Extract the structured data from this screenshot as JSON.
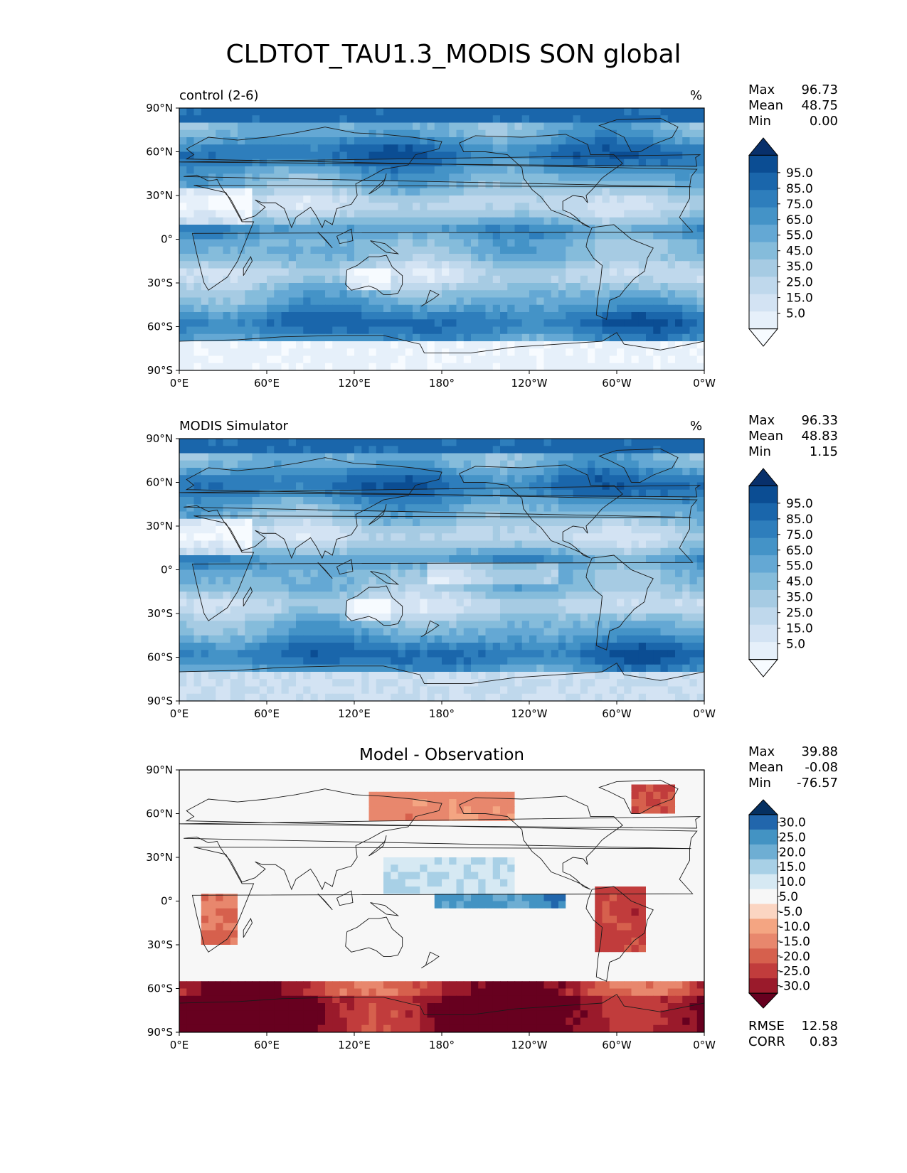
{
  "title": "CLDTOT_TAU1.3_MODIS SON global",
  "colors": {
    "blues": [
      "#f7fbff",
      "#e6f0fa",
      "#d3e3f3",
      "#bfd8ec",
      "#a6cbe3",
      "#85bcdb",
      "#64a8d4",
      "#4493c7",
      "#2e7ebc",
      "#1a66ab",
      "#0b4d93",
      "#08306b"
    ],
    "rdbu": [
      "#67001f",
      "#9a1a2b",
      "#c13c3c",
      "#d6604d",
      "#e8876d",
      "#f4a582",
      "#fbd5c2",
      "#f7f7f7",
      "#d6e9f3",
      "#a8d0e6",
      "#6eaed3",
      "#4393c3",
      "#2166ac",
      "#053061"
    ],
    "coast": "#1a1a1a"
  },
  "panels": [
    {
      "left_label": "control (2-6)",
      "center_label": "",
      "units": "%",
      "stats": [
        {
          "label": "Max",
          "value": "96.73"
        },
        {
          "label": "Mean",
          "value": "48.75"
        },
        {
          "label": "Min",
          "value": "0.00"
        }
      ],
      "extra_stats": [],
      "colorbar": {
        "colormap": "Blues",
        "ticks": [
          "95.0",
          "85.0",
          "75.0",
          "65.0",
          "55.0",
          "45.0",
          "35.0",
          "25.0",
          "15.0",
          "5.0"
        ]
      }
    },
    {
      "left_label": "MODIS Simulator",
      "center_label": "",
      "units": "%",
      "stats": [
        {
          "label": "Max",
          "value": "96.33"
        },
        {
          "label": "Mean",
          "value": "48.83"
        },
        {
          "label": "Min",
          "value": "1.15"
        }
      ],
      "extra_stats": [],
      "colorbar": {
        "colormap": "Blues",
        "ticks": [
          "95.0",
          "85.0",
          "75.0",
          "65.0",
          "55.0",
          "45.0",
          "35.0",
          "25.0",
          "15.0",
          "5.0"
        ]
      }
    },
    {
      "left_label": "",
      "center_label": "Model - Observation",
      "units": "",
      "stats": [
        {
          "label": "Max",
          "value": "39.88"
        },
        {
          "label": "Mean",
          "value": "-0.08"
        },
        {
          "label": "Min",
          "value": "-76.57"
        }
      ],
      "extra_stats": [
        {
          "label": "RMSE",
          "value": "12.58"
        },
        {
          "label": "CORR",
          "value": "0.83"
        }
      ],
      "colorbar": {
        "colormap": "RdBu_r",
        "ticks": [
          "30.0",
          "25.0",
          "20.0",
          "15.0",
          "10.0",
          "5.0",
          "-5.0",
          "-10.0",
          "-15.0",
          "-20.0",
          "-25.0",
          "-30.0"
        ]
      }
    }
  ],
  "chart_data": [
    {
      "type": "heatmap",
      "title": "control (2-6)",
      "units": "%",
      "x_ticks": [
        "0°E",
        "60°E",
        "120°E",
        "180°",
        "120°W",
        "60°W",
        "0°W"
      ],
      "y_ticks": [
        "90°N",
        "60°N",
        "30°N",
        "0°",
        "30°S",
        "60°S",
        "90°S"
      ],
      "xlim": [
        0,
        360
      ],
      "ylim": [
        -90,
        90
      ],
      "levels": [
        0,
        5,
        10,
        15,
        20,
        25,
        30,
        35,
        40,
        45,
        50,
        55,
        60,
        65,
        70,
        75,
        80,
        85,
        90,
        95,
        100
      ],
      "stats": {
        "max": 96.73,
        "mean": 48.75,
        "min": 0.0
      },
      "field_kind": "cloud"
    },
    {
      "type": "heatmap",
      "title": "MODIS Simulator",
      "units": "%",
      "x_ticks": [
        "0°E",
        "60°E",
        "120°E",
        "180°",
        "120°W",
        "60°W",
        "0°W"
      ],
      "y_ticks": [
        "90°N",
        "60°N",
        "30°N",
        "0°",
        "30°S",
        "60°S",
        "90°S"
      ],
      "xlim": [
        0,
        360
      ],
      "ylim": [
        -90,
        90
      ],
      "levels": [
        0,
        5,
        10,
        15,
        20,
        25,
        30,
        35,
        40,
        45,
        50,
        55,
        60,
        65,
        70,
        75,
        80,
        85,
        90,
        95,
        100
      ],
      "stats": {
        "max": 96.33,
        "mean": 48.83,
        "min": 1.15
      },
      "field_kind": "cloud_obs"
    },
    {
      "type": "heatmap",
      "title": "Model - Observation",
      "units": "",
      "x_ticks": [
        "0°E",
        "60°E",
        "120°E",
        "180°",
        "120°W",
        "60°W",
        "0°W"
      ],
      "y_ticks": [
        "90°N",
        "60°N",
        "30°N",
        "0°",
        "30°S",
        "60°S",
        "90°S"
      ],
      "xlim": [
        0,
        360
      ],
      "ylim": [
        -90,
        90
      ],
      "levels": [
        -30,
        -25,
        -20,
        -15,
        -10,
        -5,
        5,
        10,
        15,
        20,
        25,
        30
      ],
      "stats": {
        "max": 39.88,
        "mean": -0.08,
        "min": -76.57,
        "rmse": 12.58,
        "corr": 0.83
      },
      "field_kind": "diff"
    }
  ]
}
